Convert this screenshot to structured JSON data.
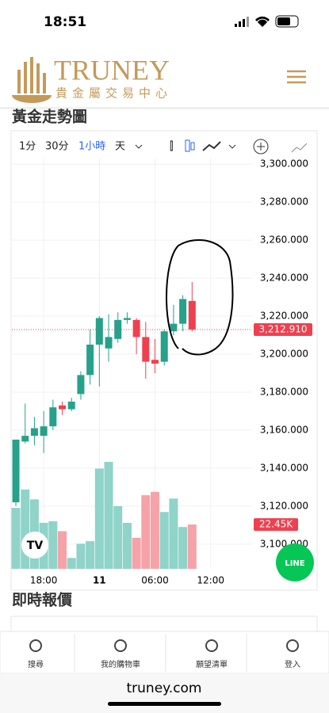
{
  "status_bar": {
    "time": "18:51"
  },
  "header": {
    "brand": "TRUNEY",
    "subtitle": "貴金屬交易中心"
  },
  "section_title": "黃金走勢圖",
  "toolbar": {
    "intervals": [
      "1分",
      "30分",
      "1小時",
      "天"
    ],
    "active": 2
  },
  "chart_data": {
    "type": "candlestick",
    "x": [
      0,
      1,
      2,
      3,
      4,
      5,
      6,
      7,
      8,
      9,
      10,
      11,
      12,
      13,
      14,
      15,
      16,
      17,
      18,
      19
    ],
    "xlim": [
      -0.43,
      25.47
    ],
    "xticks": [
      {
        "value": 3,
        "label": "18:00"
      },
      {
        "value": 9,
        "label": "11"
      },
      {
        "value": 15,
        "label": "06:00"
      },
      {
        "value": 21,
        "label": "12:00"
      }
    ],
    "open": [
      3122,
      3154,
      3157,
      3157,
      3162,
      3173,
      3171,
      3179,
      3189,
      3205,
      3203,
      3208,
      3218,
      3218,
      3209,
      3197,
      3196,
      3212,
      3216,
      3228
    ],
    "high": [
      3155,
      3174,
      3167,
      3170,
      3176,
      3175,
      3177,
      3191,
      3213,
      3220,
      3221,
      3222,
      3222,
      3219,
      3217,
      3208,
      3213,
      3226,
      3231,
      3238
    ],
    "low": [
      3120,
      3153,
      3152,
      3148,
      3160,
      3168,
      3170,
      3176,
      3184,
      3183,
      3196,
      3206,
      3216,
      3200,
      3187,
      3190,
      3194,
      3210,
      3212,
      3212
    ],
    "close": [
      3155,
      3157,
      3161,
      3162,
      3172,
      3171,
      3175,
      3189,
      3205,
      3219,
      3209,
      3218,
      3219,
      3209,
      3196,
      3195,
      3212,
      3216,
      3229,
      3213
    ],
    "volume": [
      30.9,
      40.2,
      35.2,
      23.3,
      24.1,
      19.1,
      5.5,
      12.7,
      14.0,
      50.8,
      54.2,
      31.8,
      23.3,
      15.7,
      37.3,
      39.0,
      28.8,
      35.6,
      21.2,
      22.45
    ],
    "volume_label": {
      "value": 22.45,
      "label": "22.45K"
    },
    "up_color": "#26a18a",
    "down_color": "#ef4050",
    "up_volume_color": "#8fd3c9",
    "down_volume_color": "#f5a3a8",
    "ylim": [
      3087,
      3303
    ],
    "yticks": [
      {
        "value": 3100,
        "label": "3,100.000"
      },
      {
        "value": 3120,
        "label": "3,120.000"
      },
      {
        "value": 3140,
        "label": "3,140.000"
      },
      {
        "value": 3160,
        "label": "3,160.000"
      },
      {
        "value": 3180,
        "label": "3,180.000"
      },
      {
        "value": 3200,
        "label": "3,200.000"
      },
      {
        "value": 3220,
        "label": "3,220.000"
      },
      {
        "value": 3240,
        "label": "3,240.000"
      },
      {
        "value": 3260,
        "label": "3,260.000"
      },
      {
        "value": 3280,
        "label": "3,280.000"
      },
      {
        "value": 3300,
        "label": "3,300.000"
      }
    ],
    "current_price": {
      "value": 3212.91,
      "label": "3,212.910"
    },
    "grid": true
  },
  "section_title_2": "即時報價",
  "bottom_nav": [
    "搜尋",
    "我的購物車",
    "願望清單",
    "登入"
  ],
  "url": "truney.com"
}
